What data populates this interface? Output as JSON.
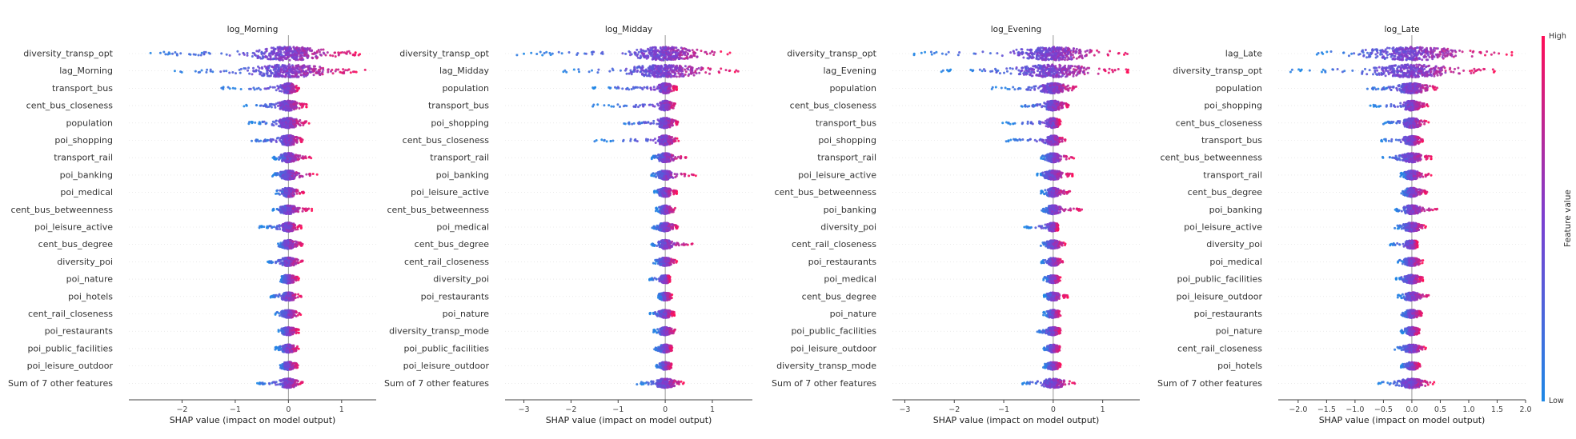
{
  "colorbar": {
    "label": "Feature value",
    "high_label": "High",
    "low_label": "Low",
    "colors": [
      "#1e88e5",
      "#7b3fd0",
      "#ff0d57"
    ]
  },
  "chart_data": [
    {
      "type": "scatter",
      "title": "log_Morning",
      "xlabel": "SHAP value (impact on model output)",
      "xlim": [
        -3.0,
        1.65
      ],
      "xticks": [
        -2,
        -1,
        0,
        1
      ],
      "xtick_labels": [
        "−2",
        "−1",
        "0",
        "1"
      ],
      "features": [
        {
          "name": "diversity_transp_opt",
          "min": -2.8,
          "max": 1.45,
          "spread": 1.0
        },
        {
          "name": "lag_Morning",
          "min": -2.15,
          "max": 1.45,
          "spread": 0.9
        },
        {
          "name": "transport_bus",
          "min": -1.3,
          "max": 0.2,
          "spread": 0.6
        },
        {
          "name": "cent_bus_closeness",
          "min": -0.85,
          "max": 0.35,
          "spread": 0.6
        },
        {
          "name": "population",
          "min": -0.75,
          "max": 0.4,
          "spread": 0.6
        },
        {
          "name": "poi_shopping",
          "min": -0.75,
          "max": 0.3,
          "spread": 0.6
        },
        {
          "name": "transport_rail",
          "min": -0.3,
          "max": 0.45,
          "spread": 0.5
        },
        {
          "name": "poi_banking",
          "min": -0.3,
          "max": 0.55,
          "spread": 0.5
        },
        {
          "name": "poi_medical",
          "min": -0.25,
          "max": 0.3,
          "spread": 0.5
        },
        {
          "name": "cent_bus_betweenness",
          "min": -0.3,
          "max": 0.45,
          "spread": 0.45
        },
        {
          "name": "poi_leisure_active",
          "min": -0.55,
          "max": 0.25,
          "spread": 0.45
        },
        {
          "name": "cent_bus_degree",
          "min": -0.25,
          "max": 0.3,
          "spread": 0.45
        },
        {
          "name": "diversity_poi",
          "min": -0.4,
          "max": 0.3,
          "spread": 0.4
        },
        {
          "name": "poi_nature",
          "min": -0.15,
          "max": 0.2,
          "spread": 0.4
        },
        {
          "name": "poi_hotels",
          "min": -0.35,
          "max": 0.25,
          "spread": 0.4
        },
        {
          "name": "cent_rail_closeness",
          "min": -0.25,
          "max": 0.25,
          "spread": 0.35
        },
        {
          "name": "poi_restaurants",
          "min": -0.2,
          "max": 0.2,
          "spread": 0.35
        },
        {
          "name": "poi_public_facilities",
          "min": -0.25,
          "max": 0.2,
          "spread": 0.35
        },
        {
          "name": "poi_leisure_outdoor",
          "min": -0.2,
          "max": 0.2,
          "spread": 0.35
        },
        {
          "name": "Sum of 7 other features",
          "min": -0.6,
          "max": 0.3,
          "spread": 0.5
        }
      ]
    },
    {
      "type": "scatter",
      "title": "log_Midday",
      "xlabel": "SHAP value (impact on model output)",
      "xlim": [
        -3.4,
        1.85
      ],
      "xticks": [
        -3,
        -2,
        -1,
        0,
        1
      ],
      "xtick_labels": [
        "−3",
        "−2",
        "−1",
        "0",
        "1"
      ],
      "features": [
        {
          "name": "diversity_transp_opt",
          "min": -3.15,
          "max": 1.4,
          "spread": 1.0
        },
        {
          "name": "lag_Midday",
          "min": -2.2,
          "max": 1.6,
          "spread": 0.9
        },
        {
          "name": "population",
          "min": -1.65,
          "max": 0.25,
          "spread": 0.6
        },
        {
          "name": "transport_bus",
          "min": -1.55,
          "max": 0.25,
          "spread": 0.55
        },
        {
          "name": "poi_shopping",
          "min": -0.95,
          "max": 0.3,
          "spread": 0.6
        },
        {
          "name": "cent_bus_closeness",
          "min": -1.5,
          "max": 0.3,
          "spread": 0.55
        },
        {
          "name": "transport_rail",
          "min": -0.3,
          "max": 0.45,
          "spread": 0.5
        },
        {
          "name": "poi_banking",
          "min": -0.3,
          "max": 0.7,
          "spread": 0.5
        },
        {
          "name": "poi_leisure_active",
          "min": -0.25,
          "max": 0.25,
          "spread": 0.45
        },
        {
          "name": "cent_bus_betweenness",
          "min": -0.2,
          "max": 0.25,
          "spread": 0.4
        },
        {
          "name": "poi_medical",
          "min": -0.3,
          "max": 0.3,
          "spread": 0.4
        },
        {
          "name": "cent_bus_degree",
          "min": -0.3,
          "max": 0.65,
          "spread": 0.45
        },
        {
          "name": "cent_rail_closeness",
          "min": -0.25,
          "max": 0.25,
          "spread": 0.4
        },
        {
          "name": "diversity_poi",
          "min": -0.35,
          "max": 0.1,
          "spread": 0.35
        },
        {
          "name": "poi_restaurants",
          "min": -0.15,
          "max": 0.15,
          "spread": 0.35
        },
        {
          "name": "poi_nature",
          "min": -0.35,
          "max": 0.2,
          "spread": 0.35
        },
        {
          "name": "diversity_transp_mode",
          "min": -0.25,
          "max": 0.25,
          "spread": 0.35
        },
        {
          "name": "poi_public_facilities",
          "min": -0.25,
          "max": 0.15,
          "spread": 0.35
        },
        {
          "name": "poi_leisure_outdoor",
          "min": -0.2,
          "max": 0.15,
          "spread": 0.3
        },
        {
          "name": "Sum of 7 other features",
          "min": -0.6,
          "max": 0.4,
          "spread": 0.5
        }
      ]
    },
    {
      "type": "scatter",
      "title": "log_Evening",
      "xlabel": "SHAP value (impact on model output)",
      "xlim": [
        -3.25,
        1.75
      ],
      "xticks": [
        -3,
        -2,
        -1,
        0,
        1
      ],
      "xtick_labels": [
        "−3",
        "−2",
        "−1",
        "0",
        "1"
      ],
      "features": [
        {
          "name": "diversity_transp_opt",
          "min": -2.95,
          "max": 1.55,
          "spread": 1.0
        },
        {
          "name": "lag_Evening",
          "min": -2.3,
          "max": 1.55,
          "spread": 0.9
        },
        {
          "name": "population",
          "min": -1.25,
          "max": 0.55,
          "spread": 0.6
        },
        {
          "name": "cent_bus_closeness",
          "min": -0.7,
          "max": 0.35,
          "spread": 0.55
        },
        {
          "name": "transport_bus",
          "min": -1.05,
          "max": 0.15,
          "spread": 0.55
        },
        {
          "name": "poi_shopping",
          "min": -0.95,
          "max": 0.25,
          "spread": 0.55
        },
        {
          "name": "transport_rail",
          "min": -0.25,
          "max": 0.45,
          "spread": 0.5
        },
        {
          "name": "poi_leisure_active",
          "min": -0.35,
          "max": 0.4,
          "spread": 0.5
        },
        {
          "name": "cent_bus_betweenness",
          "min": -0.25,
          "max": 0.4,
          "spread": 0.45
        },
        {
          "name": "poi_banking",
          "min": -0.25,
          "max": 0.65,
          "spread": 0.45
        },
        {
          "name": "diversity_poi",
          "min": -0.6,
          "max": 0.1,
          "spread": 0.4
        },
        {
          "name": "cent_rail_closeness",
          "min": -0.25,
          "max": 0.25,
          "spread": 0.4
        },
        {
          "name": "poi_restaurants",
          "min": -0.25,
          "max": 0.2,
          "spread": 0.35
        },
        {
          "name": "poi_medical",
          "min": -0.2,
          "max": 0.15,
          "spread": 0.35
        },
        {
          "name": "cent_bus_degree",
          "min": -0.2,
          "max": 0.3,
          "spread": 0.35
        },
        {
          "name": "poi_nature",
          "min": -0.2,
          "max": 0.15,
          "spread": 0.35
        },
        {
          "name": "poi_public_facilities",
          "min": -0.35,
          "max": 0.15,
          "spread": 0.35
        },
        {
          "name": "poi_leisure_outdoor",
          "min": -0.2,
          "max": 0.15,
          "spread": 0.3
        },
        {
          "name": "diversity_transp_mode",
          "min": -0.2,
          "max": 0.15,
          "spread": 0.3
        },
        {
          "name": "Sum of 7 other features",
          "min": -0.65,
          "max": 0.45,
          "spread": 0.5
        }
      ]
    },
    {
      "type": "scatter",
      "title": "log_Late",
      "xlabel": "SHAP value (impact on model output)",
      "xlim": [
        -2.35,
        2.0
      ],
      "xticks": [
        -2.0,
        -1.5,
        -1.0,
        -0.5,
        0.0,
        0.5,
        1.0,
        1.5,
        2.0
      ],
      "xtick_labels": [
        "−2.0",
        "−1.5",
        "−1.0",
        "−0.5",
        "0.0",
        "0.5",
        "1.0",
        "1.5",
        "2.0"
      ],
      "features": [
        {
          "name": "lag_Late",
          "min": -1.7,
          "max": 1.8,
          "spread": 1.0
        },
        {
          "name": "diversity_transp_opt",
          "min": -2.15,
          "max": 1.5,
          "spread": 0.9
        },
        {
          "name": "population",
          "min": -0.85,
          "max": 0.5,
          "spread": 0.6
        },
        {
          "name": "poi_shopping",
          "min": -0.75,
          "max": 0.3,
          "spread": 0.55
        },
        {
          "name": "cent_bus_closeness",
          "min": -0.5,
          "max": 0.3,
          "spread": 0.55
        },
        {
          "name": "transport_bus",
          "min": -0.55,
          "max": 0.2,
          "spread": 0.5
        },
        {
          "name": "cent_bus_betweenness",
          "min": -0.55,
          "max": 0.35,
          "spread": 0.5
        },
        {
          "name": "transport_rail",
          "min": -0.2,
          "max": 0.35,
          "spread": 0.45
        },
        {
          "name": "cent_bus_degree",
          "min": -0.2,
          "max": 0.3,
          "spread": 0.45
        },
        {
          "name": "poi_banking",
          "min": -0.3,
          "max": 0.5,
          "spread": 0.45
        },
        {
          "name": "poi_leisure_active",
          "min": -0.3,
          "max": 0.25,
          "spread": 0.45
        },
        {
          "name": "diversity_poi",
          "min": -0.4,
          "max": 0.1,
          "spread": 0.4
        },
        {
          "name": "poi_medical",
          "min": -0.25,
          "max": 0.2,
          "spread": 0.4
        },
        {
          "name": "poi_public_facilities",
          "min": -0.3,
          "max": 0.2,
          "spread": 0.4
        },
        {
          "name": "poi_leisure_outdoor",
          "min": -0.25,
          "max": 0.35,
          "spread": 0.4
        },
        {
          "name": "poi_restaurants",
          "min": -0.2,
          "max": 0.2,
          "spread": 0.35
        },
        {
          "name": "poi_nature",
          "min": -0.2,
          "max": 0.15,
          "spread": 0.35
        },
        {
          "name": "cent_rail_closeness",
          "min": -0.3,
          "max": 0.25,
          "spread": 0.35
        },
        {
          "name": "poi_hotels",
          "min": -0.2,
          "max": 0.15,
          "spread": 0.3
        },
        {
          "name": "Sum of 7 other features",
          "min": -0.6,
          "max": 0.4,
          "spread": 0.55
        }
      ]
    }
  ]
}
